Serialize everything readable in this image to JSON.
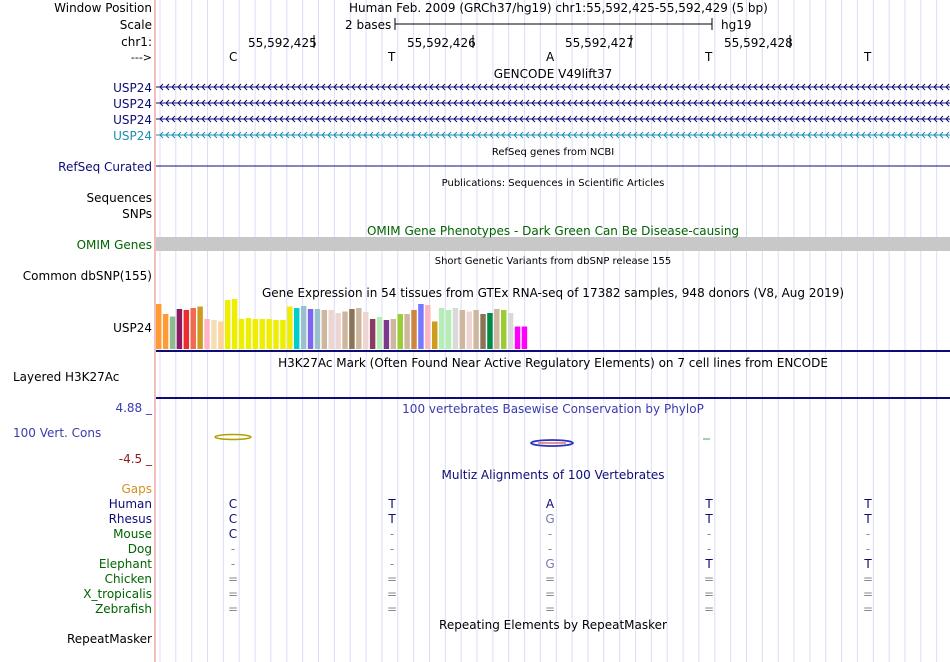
{
  "header": {
    "window_position_label": "Window Position",
    "scale_label": "Scale",
    "chrom_label": "chr1:",
    "strand_label": "--->",
    "position_text": "Human Feb. 2009 (GRCh37/hg19)   chr1:55,592,425-55,592,429 (5 bp)",
    "scale_text": "2 bases",
    "assembly": "hg19",
    "ticks": [
      "55,592,425",
      "55,592,426",
      "55,592,427",
      "55,592,428"
    ],
    "bases": [
      "C",
      "T",
      "A",
      "T",
      "T"
    ]
  },
  "tracks": {
    "gencode": {
      "title": "GENCODE V49lift37",
      "genes": [
        {
          "label": "USP24",
          "color": "#0c0c78"
        },
        {
          "label": "USP24",
          "color": "#0c0c78"
        },
        {
          "label": "USP24",
          "color": "#0c0c78"
        },
        {
          "label": "USP24",
          "color": "#1a8fb0"
        }
      ]
    },
    "refseq": {
      "title": "RefSeq genes from NCBI",
      "label": "RefSeq Curated",
      "color": "#0c0c78"
    },
    "publications": {
      "title": "Publications: Sequences in Scientific Articles",
      "labels": [
        "Sequences",
        "SNPs"
      ]
    },
    "omim": {
      "title": "OMIM Gene Phenotypes - Dark Green Can Be Disease-causing",
      "label": "OMIM Genes",
      "color": "#006400",
      "bar_color": "#c8c8c8"
    },
    "dbsnp": {
      "title": "Short Genetic Variants from dbSNP release 155",
      "label": "Common dbSNP(155)"
    },
    "gtex": {
      "title": "Gene Expression in 54 tissues from GTEx RNA-seq of 17382 samples, 948 donors (V8, Aug 2019)",
      "label": "USP24",
      "levels": [
        0.9,
        0.7,
        0.65,
        0.8,
        0.78,
        0.82,
        0.85,
        0.6,
        0.58,
        0.55,
        0.98,
        1.0,
        0.6,
        0.62,
        0.6,
        0.6,
        0.6,
        0.58,
        0.58,
        0.85,
        0.82,
        0.86,
        0.8,
        0.8,
        0.78,
        0.78,
        0.72,
        0.75,
        0.8,
        0.82,
        0.74,
        0.6,
        0.64,
        0.58,
        0.6,
        0.7,
        0.7,
        0.78,
        0.9,
        0.88,
        0.55,
        0.82,
        0.78,
        0.82,
        0.78,
        0.75,
        0.78,
        0.7,
        0.72,
        0.8,
        0.78,
        0.72,
        0.45,
        0.45
      ],
      "colors": [
        "#ff9a34",
        "#ff9a34",
        "#8fbc8f",
        "#8b1c62",
        "#ee2c2c",
        "#ee6a50",
        "#cd9b1d",
        "#ffb5c5",
        "#f5deb3",
        "#ffd39b",
        "#eeee00",
        "#eeee00",
        "#eeee00",
        "#eeee00",
        "#eeee00",
        "#eeee00",
        "#eeee00",
        "#eeee00",
        "#eeee00",
        "#eeee00",
        "#00cdcd",
        "#9ac0cd",
        "#7a67ee",
        "#9ac0cd",
        "#cdb79e",
        "#eed5d2",
        "#eed5d2",
        "#cdb79e",
        "#8b7355",
        "#cdb79e",
        "#eed5d2",
        "#8b3a62",
        "#b4eeb4",
        "#7a378b",
        "#cdb79e",
        "#9acd32",
        "#cdb79e",
        "#cd853f",
        "#7777ff",
        "#ffb6c1",
        "#cd9b1d",
        "#b4eeb4",
        "#b4eeb4",
        "#d9d9d9",
        "#cdb79e",
        "#eed5d2",
        "#cdb79e",
        "#8b7355",
        "#008b45",
        "#cdb79e",
        "#9acd32",
        "#d9d9d9",
        "#ff00ff",
        "#ff00ff"
      ]
    },
    "h3k27ac": {
      "title": "H3K27Ac Mark (Often Found Near Active Regulatory Elements) on 7 cell lines from ENCODE",
      "label": "Layered H3K27Ac"
    },
    "phylop": {
      "title": "100 vertebrates Basewise Conservation by PhyloP",
      "label": "100 Vert. Cons",
      "max": "4.88 _",
      "min": "-4.5 _",
      "max_color": "#3a3ab0",
      "min_color": "#8b1a1a",
      "label_color": "#3a3ab0"
    },
    "multiz": {
      "title": "Multiz Alignments of 100 Vertebrates",
      "gaps_label": "Gaps",
      "gaps_color": "#d2911e",
      "species": [
        {
          "name": "Human",
          "color": "#0c0c78",
          "bases": [
            "C",
            "T",
            "A",
            "T",
            "T"
          ]
        },
        {
          "name": "Rhesus",
          "color": "#0c0c78",
          "bases": [
            "C",
            "T",
            "G",
            "T",
            "T"
          ]
        },
        {
          "name": "Mouse",
          "color": "#006400",
          "bases": [
            "C",
            "-",
            "-",
            "-",
            "-"
          ]
        },
        {
          "name": "Dog",
          "color": "#006400",
          "bases": [
            "-",
            "-",
            "-",
            "-",
            "-"
          ]
        },
        {
          "name": "Elephant",
          "color": "#006400",
          "bases": [
            "-",
            "-",
            "G",
            "T",
            "T"
          ]
        },
        {
          "name": "Chicken",
          "color": "#006400",
          "bases": [
            "=",
            "=",
            "=",
            "=",
            "="
          ]
        },
        {
          "name": "X_tropicalis",
          "color": "#006400",
          "bases": [
            "=",
            "=",
            "=",
            "=",
            "="
          ]
        },
        {
          "name": "Zebrafish",
          "color": "#006400",
          "bases": [
            "=",
            "=",
            "=",
            "=",
            "="
          ]
        }
      ]
    },
    "repeatmasker": {
      "title": "Repeating Elements by RepeatMasker",
      "label": "RepeatMasker"
    }
  },
  "colors": {
    "grid_line": "#dcdcf5",
    "border_red": "#e08080",
    "track_line": "#0c0c78",
    "accent_blue": "#0c0c78"
  }
}
